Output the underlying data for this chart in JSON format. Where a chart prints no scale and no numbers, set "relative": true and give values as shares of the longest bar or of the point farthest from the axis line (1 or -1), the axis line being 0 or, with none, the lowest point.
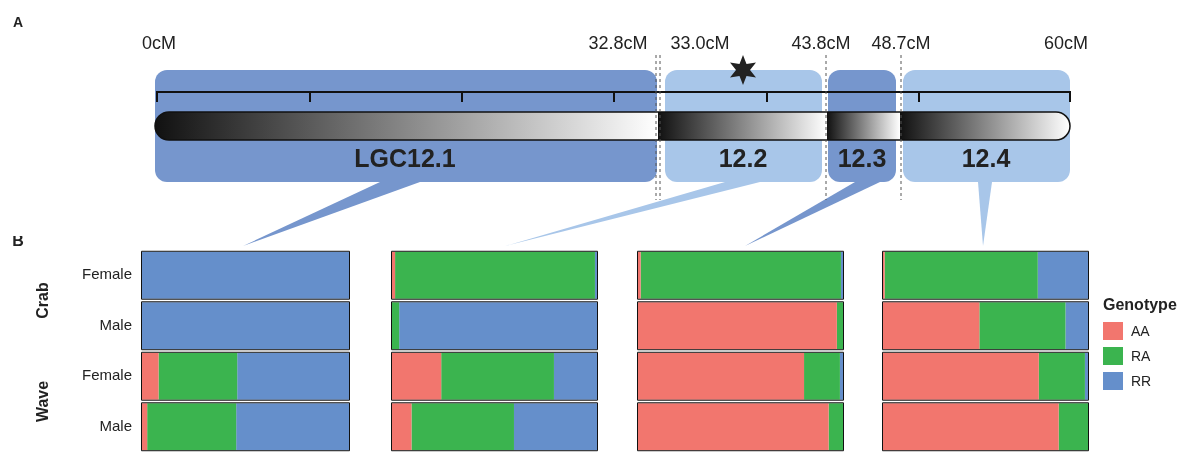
{
  "chart_data": [
    {
      "type": "other",
      "annotations": [
        "A",
        "0cM",
        "32.8cM",
        "33.0cM",
        "43.8cM",
        "48.7cM",
        "60cM",
        "LGC12.1",
        "12.2",
        "12.3",
        "12.4"
      ]
    },
    {
      "type": "bar",
      "orientation": "horizontal",
      "stacked": true,
      "relative": true,
      "tick_labels": "y",
      "legend": false,
      "annotations": [
        "B",
        "Crab",
        "Wave"
      ],
      "categories": [
        "Female",
        "Male",
        "Female",
        "Male"
      ],
      "series": [
        {
          "color": "#f2766e",
          "values": [
            0,
            0,
            0.08,
            0.025
          ]
        },
        {
          "color": "#3bb44f",
          "values": [
            0,
            0,
            0.38,
            0.43
          ]
        },
        {
          "color": "#658fcb",
          "values": [
            1,
            1,
            0.54,
            0.545
          ]
        }
      ]
    },
    {
      "type": "bar",
      "orientation": "horizontal",
      "stacked": true,
      "relative": true,
      "tick_labels": false,
      "legend": false,
      "categories": [
        null,
        null,
        null,
        null
      ],
      "series": [
        {
          "color": "#f2766e",
          "values": [
            0.015,
            0,
            0.24,
            0.095
          ]
        },
        {
          "color": "#3bb44f",
          "values": [
            0.975,
            0.035,
            0.55,
            0.5
          ]
        },
        {
          "color": "#658fcb",
          "values": [
            0.01,
            0.965,
            0.21,
            0.405
          ]
        }
      ]
    },
    {
      "type": "bar",
      "orientation": "horizontal",
      "stacked": true,
      "relative": true,
      "tick_labels": false,
      "legend": false,
      "categories": [
        null,
        null,
        null,
        null
      ],
      "series": [
        {
          "color": "#f2766e",
          "values": [
            0.013,
            0.97,
            0.81,
            0.93
          ]
        },
        {
          "color": "#3bb44f",
          "values": [
            0.977,
            0.03,
            0.175,
            0.07
          ]
        },
        {
          "color": "#658fcb",
          "values": [
            0.01,
            0,
            0.015,
            0
          ]
        }
      ]
    },
    {
      "type": "bar",
      "orientation": "horizontal",
      "stacked": true,
      "relative": true,
      "tick_labels": false,
      "legend": "right",
      "legend_title": "Genotype",
      "categories": [
        null,
        null,
        null,
        null
      ],
      "series": [
        {
          "name": "AA",
          "color": "#f2766e",
          "values": [
            0.008,
            0.47,
            0.76,
            0.857
          ]
        },
        {
          "name": "RA",
          "color": "#3bb44f",
          "values": [
            0.747,
            0.42,
            0.225,
            0.143
          ]
        },
        {
          "name": "RR",
          "color": "#658fcb",
          "values": [
            0.245,
            0.11,
            0.015,
            0
          ]
        }
      ]
    }
  ]
}
